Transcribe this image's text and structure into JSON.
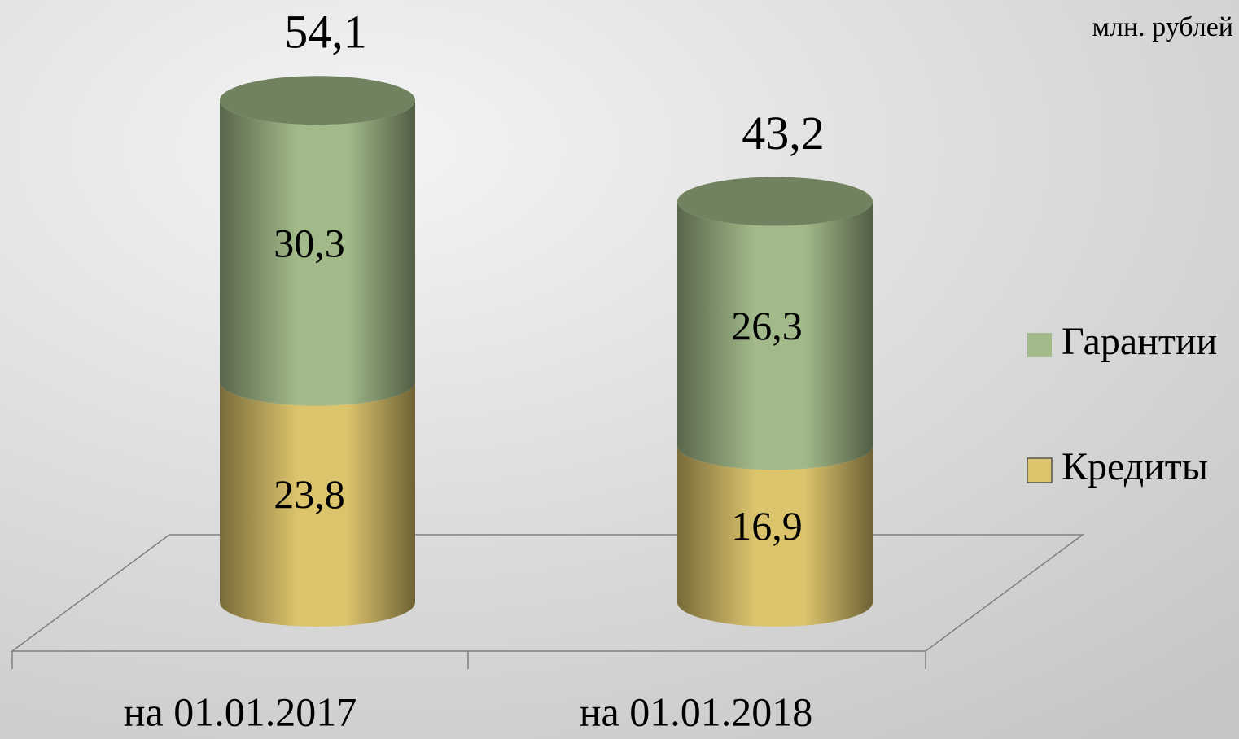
{
  "chart_data": {
    "type": "stacked-cylinder",
    "unit_label": "млн. рублей",
    "categories": [
      "на 01.01.2017",
      "на 01.01.2018"
    ],
    "series": [
      {
        "name": "Кредиты",
        "color": "#dcc46c",
        "values": [
          23.8,
          16.9
        ],
        "value_labels": [
          "23,8",
          "16,9"
        ]
      },
      {
        "name": "Гарантии",
        "color": "#a2ba8a",
        "values": [
          30.3,
          26.3
        ],
        "value_labels": [
          "30,3",
          "26,3"
        ]
      }
    ],
    "totals": [
      54.1,
      43.2
    ],
    "total_labels": [
      "54,1",
      "43,2"
    ],
    "ylim": [
      0,
      60
    ]
  }
}
